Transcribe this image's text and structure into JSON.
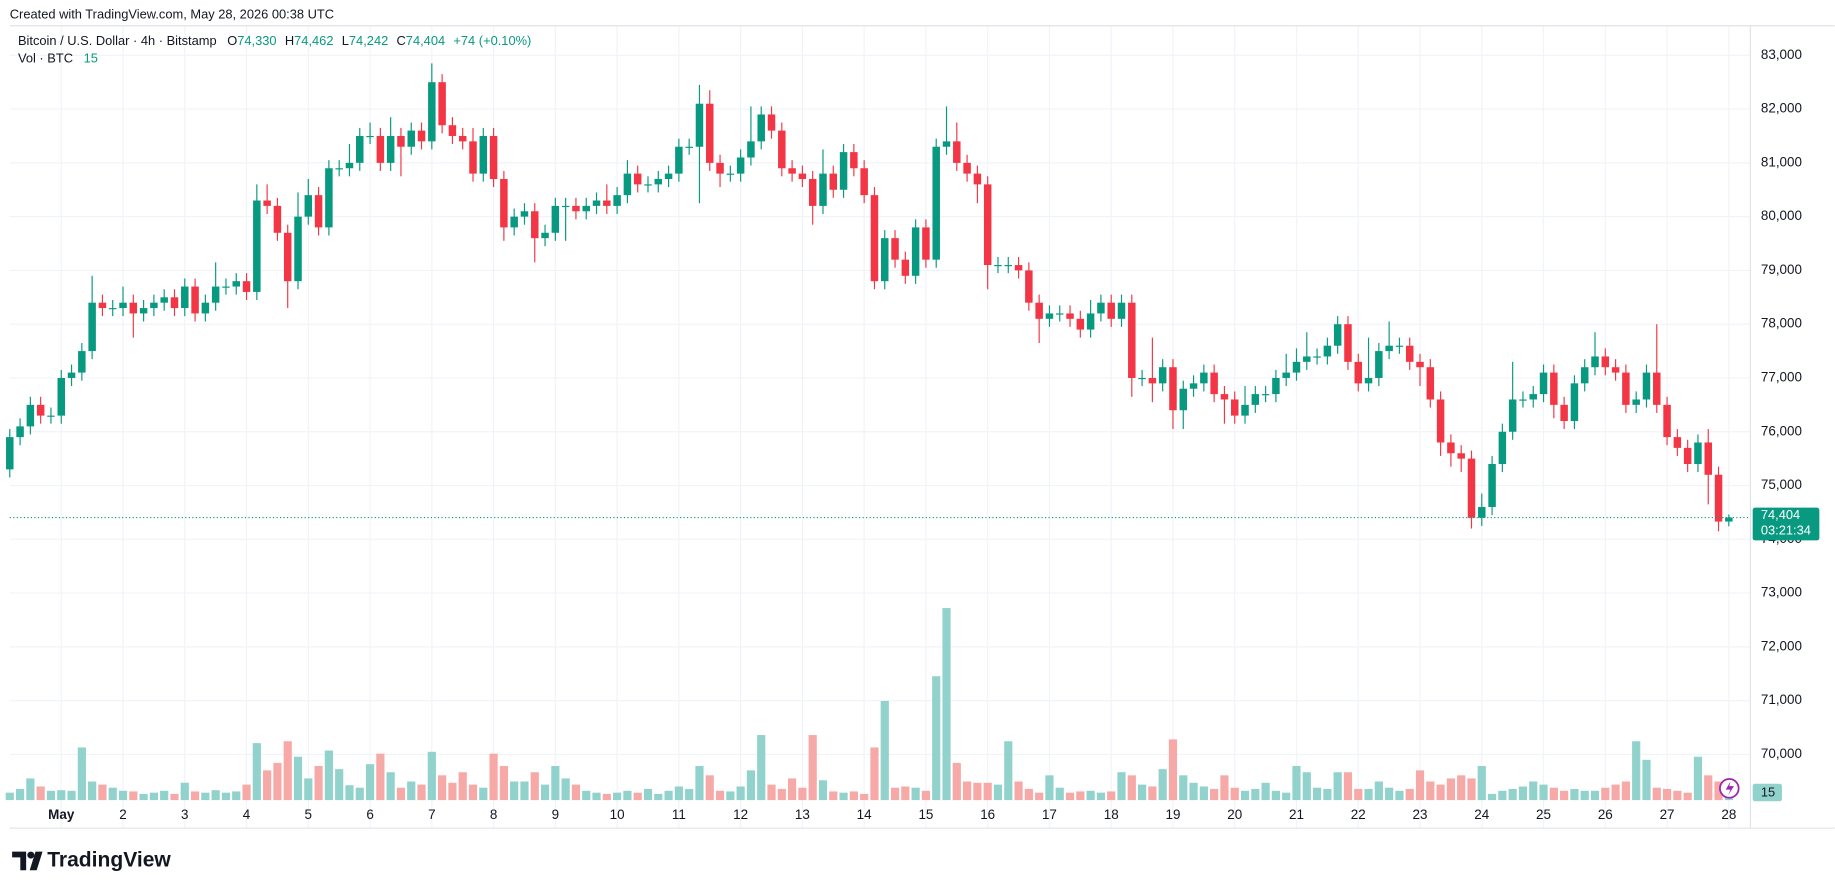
{
  "header": {
    "created": "Created with TradingView.com, May 28, 2026 00:38 UTC"
  },
  "footer": {
    "logo": "TradingView"
  },
  "chart_data": {
    "type": "candlestick",
    "title": "Bitcoin / U.S. Dollar · 4h · Bitstamp",
    "ohlc_legend": {
      "o_key": "O",
      "o": "74,330",
      "h_key": "H",
      "h": "74,462",
      "l_key": "L",
      "l": "74,242",
      "c_key": "C",
      "c": "74,404",
      "change": "+74 (+0.10%)"
    },
    "volume_title": "Vol · BTC",
    "volume_label": "15",
    "last_price_label": "74,404",
    "countdown": "03:21:34",
    "open": [
      75300,
      75900,
      76100,
      76500,
      76300,
      76300,
      77000,
      77100,
      77500,
      78400,
      78300,
      78300,
      78400,
      78200,
      78300,
      78400,
      78500,
      78300,
      78700,
      78200,
      78400,
      78700,
      78700,
      78800,
      78600,
      80300,
      80200,
      79700,
      78800,
      80000,
      80400,
      79800,
      80900,
      80900,
      81000,
      81500,
      81500,
      81000,
      81500,
      81300,
      81600,
      81400,
      82500,
      81700,
      81500,
      81400,
      80800,
      81500,
      80700,
      79800,
      80000,
      80100,
      79600,
      79700,
      80200,
      80200,
      80100,
      80200,
      80300,
      80200,
      80400,
      80800,
      80600,
      80600,
      80700,
      80800,
      81300,
      81300,
      82100,
      81000,
      80800,
      80800,
      81100,
      81400,
      81900,
      81600,
      80900,
      80800,
      80700,
      80200,
      80800,
      80500,
      81200,
      80900,
      80400,
      78800,
      79600,
      79200,
      78900,
      79800,
      79200,
      81300,
      81400,
      81000,
      80800,
      80600,
      79100,
      79100,
      79100,
      79000,
      78400,
      78100,
      78200,
      78200,
      78100,
      77900,
      78200,
      78400,
      78100,
      78400,
      77000,
      77000,
      76900,
      77200,
      76400,
      76800,
      76900,
      77100,
      76700,
      76600,
      76300,
      76500,
      76700,
      76700,
      77000,
      77100,
      77300,
      77400,
      77400,
      77600,
      78000,
      77300,
      76900,
      77000,
      77500,
      77600,
      77600,
      77300,
      77200,
      76600,
      75800,
      75600,
      75500,
      74400,
      74600,
      75400,
      76000,
      76600,
      76600,
      76700,
      77100,
      76500,
      76200,
      76900,
      77200,
      77400,
      77200,
      77100,
      76500,
      76600,
      77100,
      76500,
      75900,
      75700,
      75400,
      75800,
      75200,
      74330
    ],
    "high": [
      76050,
      76250,
      76650,
      76650,
      76450,
      77150,
      77250,
      77650,
      78900,
      78550,
      78450,
      78700,
      78550,
      78450,
      78550,
      78650,
      78650,
      78850,
      78850,
      78550,
      79150,
      78850,
      78950,
      78950,
      80600,
      80600,
      80350,
      79850,
      80450,
      80700,
      80550,
      81050,
      81050,
      81350,
      81650,
      81750,
      81650,
      81850,
      81650,
      81750,
      81750,
      82850,
      82650,
      81850,
      81650,
      81650,
      81650,
      81650,
      80850,
      80150,
      80250,
      80250,
      79850,
      80350,
      80350,
      80350,
      80350,
      80450,
      80600,
      80550,
      81050,
      80950,
      80750,
      80850,
      80950,
      81450,
      81450,
      82450,
      82350,
      81150,
      80950,
      81250,
      82050,
      82050,
      82050,
      81750,
      81050,
      80950,
      80850,
      81250,
      80950,
      81350,
      81350,
      81050,
      80550,
      79750,
      79750,
      79350,
      79950,
      79950,
      81450,
      82050,
      81750,
      81150,
      80950,
      80750,
      79250,
      79250,
      79250,
      79150,
      78550,
      78350,
      78350,
      78350,
      78250,
      78450,
      78550,
      78550,
      78550,
      78550,
      77150,
      77750,
      77350,
      77350,
      76950,
      77050,
      77250,
      77250,
      76850,
      76750,
      76850,
      76850,
      76850,
      77150,
      77450,
      77550,
      77850,
      77550,
      77750,
      78150,
      78150,
      77450,
      77750,
      77650,
      78050,
      77750,
      77750,
      77450,
      77350,
      76750,
      75950,
      75750,
      75650,
      74850,
      75550,
      76150,
      77300,
      76750,
      76850,
      77250,
      77250,
      76650,
      77050,
      77350,
      77850,
      77550,
      77350,
      77250,
      76750,
      77250,
      78000,
      76650,
      76050,
      75850,
      75950,
      76050,
      75350,
      74462
    ],
    "low": [
      75150,
      75750,
      75950,
      76150,
      76150,
      76150,
      76850,
      76950,
      77350,
      78150,
      78150,
      78150,
      77750,
      78050,
      78150,
      78250,
      78150,
      78150,
      78050,
      78050,
      78250,
      78550,
      78550,
      78450,
      78450,
      80050,
      79550,
      78300,
      78650,
      79850,
      79650,
      79650,
      80750,
      80750,
      80850,
      81350,
      80850,
      80850,
      80750,
      81150,
      81250,
      81250,
      81550,
      81350,
      81250,
      80650,
      80650,
      80550,
      79550,
      79650,
      79850,
      79150,
      79450,
      79550,
      79550,
      79950,
      79950,
      80050,
      80050,
      80050,
      80250,
      80450,
      80450,
      80450,
      80550,
      80650,
      81150,
      80250,
      80850,
      80550,
      80650,
      80650,
      80950,
      81250,
      81450,
      80750,
      80650,
      80550,
      79850,
      80050,
      80350,
      80350,
      80750,
      80250,
      78650,
      78650,
      79050,
      78750,
      78750,
      79050,
      79050,
      81150,
      80850,
      80650,
      80250,
      78650,
      78950,
      78950,
      78850,
      78250,
      77650,
      77950,
      78050,
      77950,
      77750,
      77750,
      78050,
      77950,
      77950,
      76650,
      76850,
      76550,
      76750,
      76050,
      76050,
      76650,
      76750,
      76550,
      76150,
      76150,
      76150,
      76350,
      76550,
      76550,
      76850,
      76950,
      77150,
      77250,
      77250,
      77450,
      77150,
      76750,
      76750,
      76850,
      77350,
      77450,
      77150,
      76850,
      76450,
      75550,
      75350,
      75250,
      74200,
      74250,
      74450,
      75250,
      75850,
      76450,
      76450,
      76550,
      76250,
      76050,
      76050,
      76750,
      77050,
      77050,
      76950,
      76350,
      76350,
      76450,
      76350,
      75750,
      75550,
      75250,
      75250,
      74650,
      74150,
      74242
    ],
    "close": [
      75900,
      76100,
      76500,
      76300,
      76300,
      77000,
      77100,
      77500,
      78400,
      78300,
      78300,
      78400,
      78200,
      78300,
      78400,
      78500,
      78300,
      78700,
      78200,
      78400,
      78700,
      78700,
      78800,
      78600,
      80300,
      80200,
      79700,
      78800,
      80000,
      80400,
      79800,
      80900,
      80900,
      81000,
      81500,
      81500,
      81000,
      81500,
      81300,
      81600,
      81400,
      82500,
      81700,
      81500,
      81400,
      80800,
      81500,
      80700,
      79800,
      80000,
      80100,
      79600,
      79700,
      80200,
      80200,
      80100,
      80200,
      80300,
      80200,
      80400,
      80800,
      80600,
      80600,
      80700,
      80800,
      81300,
      81300,
      82100,
      81000,
      80800,
      80800,
      81100,
      81400,
      81900,
      81600,
      80900,
      80800,
      80700,
      80200,
      80800,
      80500,
      81200,
      80900,
      80400,
      78800,
      79600,
      79200,
      78900,
      79800,
      79200,
      81300,
      81400,
      81000,
      80800,
      80600,
      79100,
      79100,
      79100,
      79000,
      78400,
      78100,
      78200,
      78200,
      78100,
      77900,
      78200,
      78400,
      78100,
      78400,
      77000,
      77000,
      76900,
      77200,
      76400,
      76800,
      76900,
      77100,
      76700,
      76600,
      76300,
      76500,
      76700,
      76700,
      77000,
      77100,
      77300,
      77400,
      77400,
      77600,
      78000,
      77300,
      76900,
      77000,
      77500,
      77600,
      77600,
      77300,
      77200,
      76600,
      75800,
      75600,
      75500,
      74400,
      74600,
      75400,
      76000,
      76600,
      76600,
      76700,
      77100,
      76500,
      76200,
      76900,
      77200,
      77400,
      77200,
      77100,
      76500,
      76600,
      77100,
      76500,
      75900,
      75700,
      75400,
      75800,
      75200,
      74330,
      74404
    ],
    "volume": [
      12,
      18,
      35,
      22,
      15,
      16,
      15,
      85,
      30,
      25,
      20,
      15,
      14,
      10,
      12,
      15,
      10,
      28,
      14,
      12,
      16,
      12,
      14,
      25,
      92,
      48,
      60,
      95,
      70,
      35,
      55,
      80,
      50,
      24,
      20,
      58,
      75,
      45,
      20,
      30,
      25,
      78,
      40,
      28,
      45,
      25,
      20,
      75,
      55,
      30,
      30,
      45,
      25,
      55,
      35,
      25,
      15,
      12,
      10,
      12,
      15,
      12,
      18,
      10,
      15,
      22,
      18,
      55,
      40,
      15,
      14,
      22,
      48,
      105,
      25,
      18,
      35,
      20,
      105,
      32,
      14,
      12,
      14,
      10,
      85,
      160,
      20,
      22,
      20,
      15,
      200,
      310,
      60,
      30,
      28,
      28,
      25,
      95,
      30,
      18,
      12,
      40,
      20,
      12,
      14,
      15,
      12,
      14,
      45,
      40,
      25,
      22,
      50,
      98,
      40,
      28,
      22,
      18,
      40,
      20,
      15,
      18,
      28,
      15,
      12,
      55,
      45,
      20,
      18,
      45,
      45,
      18,
      18,
      30,
      20,
      15,
      18,
      48,
      30,
      25,
      35,
      40,
      35,
      55,
      10,
      15,
      18,
      22,
      30,
      25,
      20,
      15,
      18,
      15,
      15,
      20,
      25,
      30,
      95,
      65,
      20,
      18,
      15,
      12,
      70,
      40,
      30,
      15
    ],
    "up_color": "#089981",
    "down_color": "#f23645",
    "volume_up_color": "#92d2cc",
    "volume_down_color": "#f7a9a7",
    "ylim": [
      68650,
      83550
    ],
    "yticks": [
      {
        "value": 70000,
        "label": "70,000"
      },
      {
        "value": 71000,
        "label": "71,000"
      },
      {
        "value": 72000,
        "label": "72,000"
      },
      {
        "value": 73000,
        "label": "73,000"
      },
      {
        "value": 74000,
        "label": "74,000"
      },
      {
        "value": 75000,
        "label": "75,000"
      },
      {
        "value": 76000,
        "label": "76,000"
      },
      {
        "value": 77000,
        "label": "77,000"
      },
      {
        "value": 78000,
        "label": "78,000"
      },
      {
        "value": 79000,
        "label": "79,000"
      },
      {
        "value": 80000,
        "label": "80,000"
      },
      {
        "value": 81000,
        "label": "81,000"
      },
      {
        "value": 82000,
        "label": "82,000"
      },
      {
        "value": 83000,
        "label": "83,000"
      }
    ],
    "volume_lim": [
      0,
      1250
    ],
    "xticks": [
      {
        "value": 5,
        "label": "May"
      },
      {
        "value": 11,
        "label": "2"
      },
      {
        "value": 17,
        "label": "3"
      },
      {
        "value": 23,
        "label": "4"
      },
      {
        "value": 29,
        "label": "5"
      },
      {
        "value": 35,
        "label": "6"
      },
      {
        "value": 41,
        "label": "7"
      },
      {
        "value": 47,
        "label": "8"
      },
      {
        "value": 53,
        "label": "9"
      },
      {
        "value": 59,
        "label": "10"
      },
      {
        "value": 65,
        "label": "11"
      },
      {
        "value": 71,
        "label": "12"
      },
      {
        "value": 77,
        "label": "13"
      },
      {
        "value": 83,
        "label": "14"
      },
      {
        "value": 89,
        "label": "15"
      },
      {
        "value": 95,
        "label": "16"
      },
      {
        "value": 101,
        "label": "17"
      },
      {
        "value": 107,
        "label": "18"
      },
      {
        "value": 113,
        "label": "19"
      },
      {
        "value": 119,
        "label": "20"
      },
      {
        "value": 125,
        "label": "21"
      },
      {
        "value": 131,
        "label": "22"
      },
      {
        "value": 137,
        "label": "23"
      },
      {
        "value": 143,
        "label": "24"
      },
      {
        "value": 149,
        "label": "25"
      },
      {
        "value": 155,
        "label": "26"
      },
      {
        "value": 161,
        "label": "27"
      },
      {
        "value": 167,
        "label": "28"
      }
    ],
    "grid": true
  }
}
